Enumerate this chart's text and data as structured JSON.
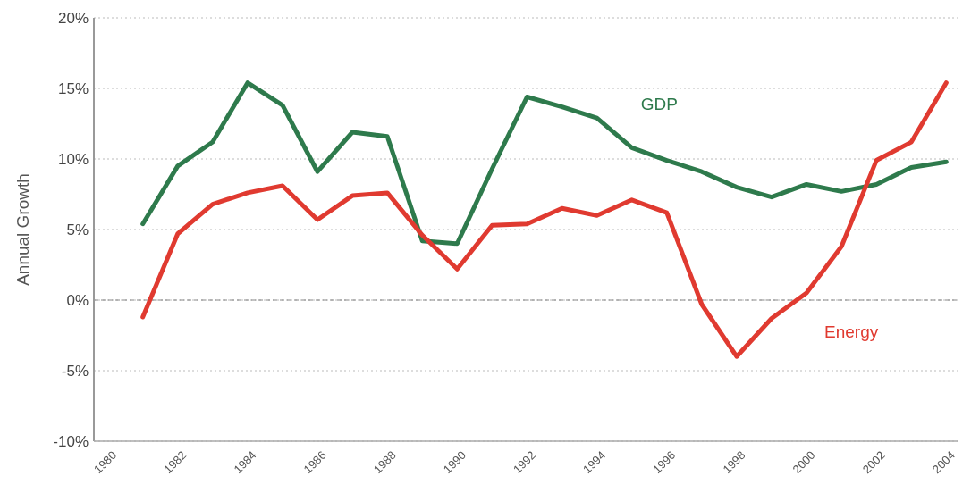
{
  "chart_data": {
    "type": "line",
    "ylabel": "Annual Growth",
    "x": [
      1981,
      1982,
      1983,
      1984,
      1985,
      1986,
      1987,
      1988,
      1989,
      1990,
      1991,
      1992,
      1993,
      1994,
      1995,
      1996,
      1997,
      1998,
      1999,
      2000,
      2001,
      2002,
      2003,
      2004
    ],
    "series": [
      {
        "name": "GDP",
        "color": "#2e7a4c",
        "values": [
          5.4,
          9.5,
          11.2,
          15.4,
          13.8,
          9.1,
          11.9,
          11.6,
          4.2,
          4.0,
          9.3,
          14.4,
          13.7,
          12.9,
          10.8,
          9.9,
          9.1,
          8.0,
          7.3,
          8.2,
          7.7,
          8.2,
          9.4,
          9.8
        ]
      },
      {
        "name": "Energy",
        "color": "#e03a30",
        "values": [
          -1.2,
          4.7,
          6.8,
          7.6,
          8.1,
          5.7,
          7.4,
          7.6,
          4.6,
          2.2,
          5.3,
          5.4,
          6.5,
          6.0,
          7.1,
          6.2,
          -0.3,
          -4.0,
          -1.3,
          0.5,
          3.8,
          9.9,
          11.2,
          15.4
        ]
      }
    ],
    "xlim": [
      1979.6,
      2004.35
    ],
    "xticks": [
      1980,
      1982,
      1984,
      1986,
      1988,
      1990,
      1992,
      1994,
      1996,
      1998,
      2000,
      2002,
      2004
    ],
    "ylim": [
      -10,
      20
    ],
    "yticks": [
      {
        "value": -10,
        "label": "-10%"
      },
      {
        "value": -5,
        "label": "-5%"
      },
      {
        "value": 0,
        "label": "0%"
      },
      {
        "value": 5,
        "label": "5%"
      },
      {
        "value": 10,
        "label": "10%"
      },
      {
        "value": 15,
        "label": "15%"
      },
      {
        "value": 20,
        "label": "20%"
      }
    ],
    "ref_lines": [
      {
        "axis": "y",
        "value": 0,
        "color": "#888888",
        "line_style": "dashed"
      }
    ],
    "grid": "y",
    "legend": false,
    "line_style": "solid",
    "marker": "none"
  }
}
